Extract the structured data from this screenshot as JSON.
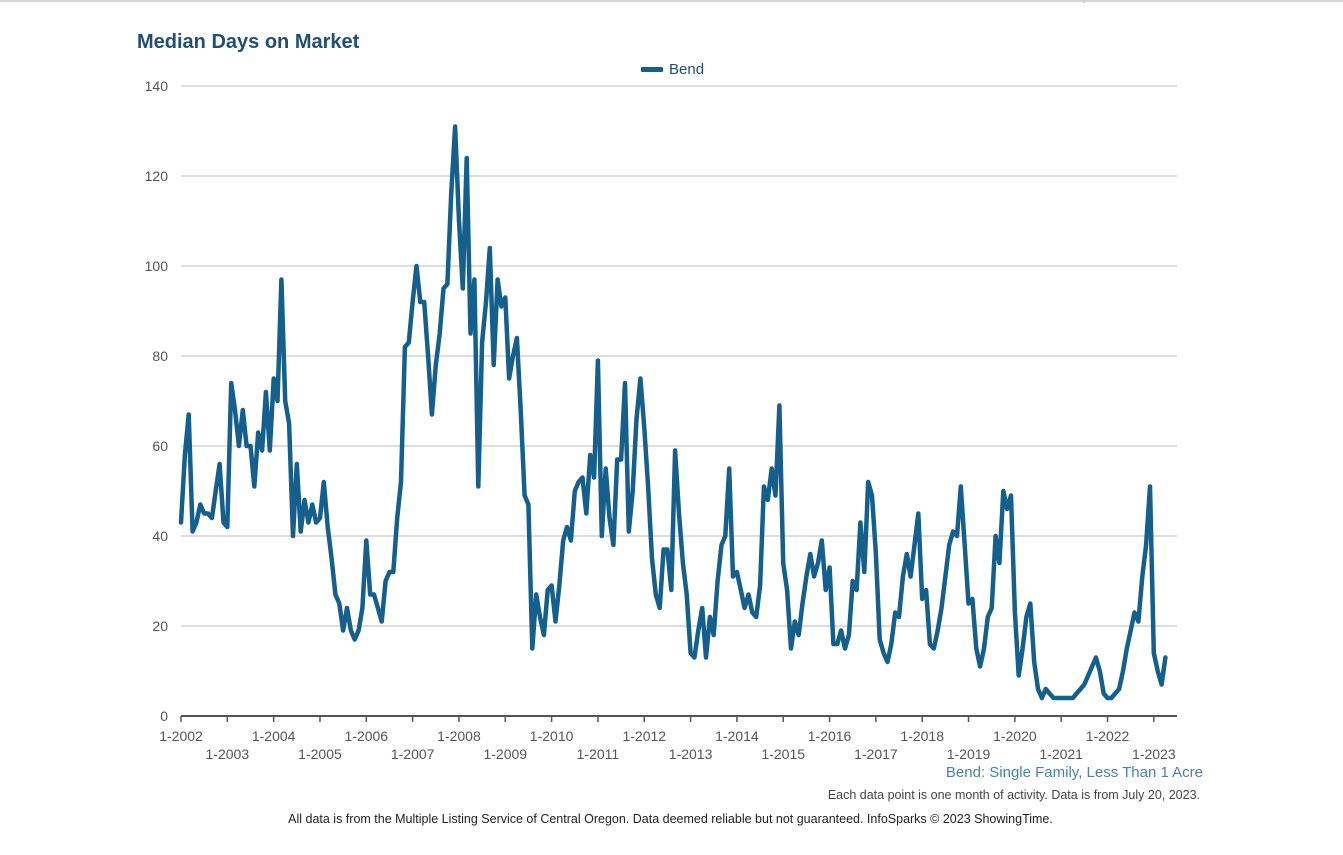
{
  "chart_data": {
    "type": "line",
    "title": "Median Days on Market",
    "legend": [
      "Bend"
    ],
    "legend_position": "top-center",
    "ylim": [
      0,
      140
    ],
    "yticks": [
      0,
      20,
      40,
      60,
      80,
      100,
      120,
      140
    ],
    "grid": true,
    "x_start": "1-2002",
    "x_end": "7-2023",
    "xticks_upper": [
      "1-2002",
      "1-2004",
      "1-2006",
      "1-2008",
      "1-2010",
      "1-2012",
      "1-2014",
      "1-2016",
      "1-2018",
      "1-2020",
      "1-2022"
    ],
    "xticks_lower": [
      "1-2003",
      "1-2005",
      "1-2007",
      "1-2009",
      "1-2011",
      "1-2013",
      "1-2015",
      "1-2017",
      "1-2019",
      "1-2021",
      "1-2023"
    ],
    "series": [
      {
        "name": "Bend",
        "color": "#145f8c",
        "values": [
          43,
          58,
          67,
          41,
          43,
          47,
          45,
          45,
          44,
          50,
          56,
          43,
          42,
          74,
          68,
          60,
          68,
          60,
          60,
          51,
          63,
          59,
          72,
          59,
          75,
          70,
          97,
          70,
          65,
          40,
          56,
          41,
          48,
          43,
          47,
          43,
          44,
          52,
          42,
          35,
          27,
          25,
          19,
          24,
          19,
          17,
          19,
          24,
          39,
          27,
          27,
          24,
          21,
          30,
          32,
          32,
          44,
          52,
          82,
          83,
          92,
          100,
          92,
          92,
          80,
          67,
          78,
          85,
          95,
          96,
          116,
          131,
          110,
          95,
          124,
          85,
          97,
          51,
          83,
          92,
          104,
          78,
          97,
          91,
          93,
          75,
          80,
          84,
          68,
          49,
          47,
          15,
          27,
          22,
          18,
          28,
          29,
          21,
          29,
          39,
          42,
          39,
          50,
          52,
          53,
          45,
          58,
          53,
          79,
          40,
          55,
          44,
          38,
          57,
          57,
          74,
          41,
          50,
          66,
          75,
          64,
          51,
          35,
          27,
          24,
          37,
          37,
          28,
          59,
          45,
          34,
          27,
          14,
          13,
          19,
          24,
          13,
          22,
          18,
          30,
          38,
          40,
          55,
          31,
          32,
          28,
          24,
          27,
          23,
          22,
          29,
          51,
          48,
          55,
          49,
          69,
          34,
          28,
          15,
          21,
          18,
          25,
          31,
          36,
          31,
          34,
          39,
          28,
          33,
          16,
          16,
          19,
          15,
          18,
          30,
          28,
          43,
          32,
          52,
          49,
          36,
          17,
          14,
          12,
          16,
          23,
          22,
          31,
          36,
          31,
          38,
          45,
          26,
          28,
          16,
          15,
          19,
          24,
          31,
          38,
          41,
          40,
          51,
          38,
          25,
          26,
          15,
          11,
          15,
          22,
          24,
          40,
          34,
          50,
          46,
          49,
          23,
          9,
          15,
          22,
          25,
          12,
          6,
          4,
          6,
          5,
          4,
          4,
          4,
          4,
          4,
          4,
          5,
          6,
          7,
          9,
          11,
          13,
          10,
          5,
          4,
          4,
          5,
          6,
          10,
          15,
          19,
          23,
          21,
          31,
          38,
          51,
          14,
          10,
          7,
          13
        ]
      }
    ],
    "subtitle": "Bend: Single Family, Less Than 1 Acre",
    "note": "Each data point is one month of activity. Data is from July 20, 2023.",
    "footer": "All data is from the Multiple Listing Service of Central Oregon. Data deemed reliable but not guaranteed. InfoSparks © 2023 ShowingTime."
  }
}
